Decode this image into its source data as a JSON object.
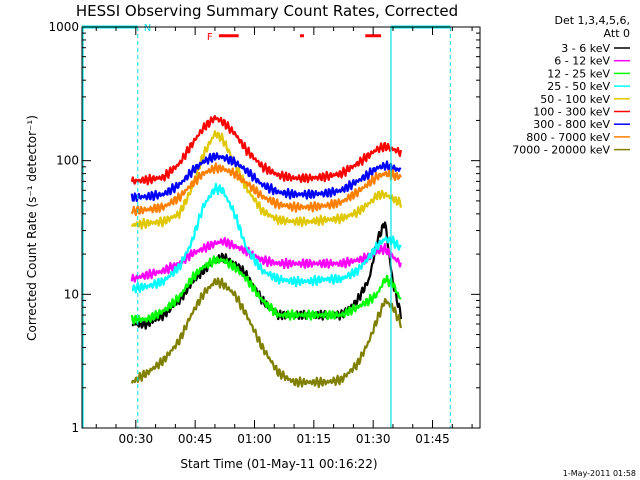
{
  "chart_data": {
    "type": "line",
    "title": "HESSI Observing Summary Count Rates, Corrected",
    "xlabel": "Start Time (01-May-11 00:16:22)",
    "ylabel": "Corrected Count Rate (s⁻¹ detector⁻¹)",
    "y_scale": "log",
    "ylim": [
      1,
      1000
    ],
    "xlim_minutes": [
      16.4,
      117
    ],
    "x_ticks": [
      {
        "label": "00:30",
        "value": 30
      },
      {
        "label": "00:45",
        "value": 45
      },
      {
        "label": "01:00",
        "value": 60
      },
      {
        "label": "01:15",
        "value": 75
      },
      {
        "label": "01:30",
        "value": 90
      },
      {
        "label": "01:45",
        "value": 105
      }
    ],
    "y_ticks": [
      {
        "label": "1",
        "value": 1
      },
      {
        "label": "10",
        "value": 10
      },
      {
        "label": "100",
        "value": 100
      },
      {
        "label": "1000",
        "value": 1000
      }
    ],
    "legend_header": [
      "Det 1,3,4,5,6,",
      "Att 0"
    ],
    "legend_position": "right",
    "x": [
      29,
      33,
      37,
      41,
      44,
      47,
      50,
      52,
      55,
      58,
      62,
      66,
      70,
      74,
      78,
      82,
      86,
      89,
      91,
      93,
      95,
      97
    ],
    "series": [
      {
        "name": "3 - 6 keV",
        "color": "#000000",
        "values": [
          6,
          6,
          7,
          9,
          12,
          15,
          18,
          19,
          17,
          14,
          9,
          7,
          7,
          7,
          7,
          7,
          9,
          13,
          25,
          35,
          12,
          7
        ]
      },
      {
        "name": "6 - 12 keV",
        "color": "#ff00ff",
        "values": [
          13,
          14,
          15,
          17,
          20,
          22,
          24,
          25,
          23,
          21,
          18,
          17,
          17,
          17,
          17,
          17,
          18,
          19,
          21,
          22,
          19,
          17
        ]
      },
      {
        "name": "12 - 25 keV",
        "color": "#00ff00",
        "values": [
          6.5,
          6.5,
          7.5,
          9.5,
          13,
          16,
          18,
          18,
          16,
          13,
          9,
          7,
          7,
          7,
          7,
          7,
          8,
          9,
          10,
          13,
          12,
          9
        ]
      },
      {
        "name": "25 - 50 keV",
        "color": "#00ffff",
        "values": [
          11,
          11.5,
          12.5,
          16,
          24,
          45,
          62,
          60,
          40,
          22,
          15,
          13,
          12.5,
          12.5,
          13,
          13,
          15,
          19,
          23,
          26,
          25,
          22
        ]
      },
      {
        "name": "50 - 100 keV",
        "color": "#e0c800",
        "values": [
          33,
          34,
          35,
          40,
          60,
          110,
          160,
          145,
          95,
          62,
          42,
          36,
          35,
          35,
          36,
          37,
          41,
          48,
          55,
          56,
          52,
          48
        ]
      },
      {
        "name": "100 - 300 keV",
        "color": "#ff0000",
        "values": [
          70,
          72,
          75,
          95,
          130,
          175,
          210,
          195,
          160,
          120,
          90,
          78,
          74,
          74,
          76,
          80,
          95,
          110,
          122,
          128,
          122,
          115
        ]
      },
      {
        "name": "300 - 800 keV",
        "color": "#0000ff",
        "values": [
          53,
          54,
          56,
          66,
          82,
          98,
          108,
          106,
          98,
          84,
          66,
          58,
          56,
          56,
          57,
          60,
          70,
          80,
          88,
          92,
          88,
          85
        ]
      },
      {
        "name": "800 - 7000 keV",
        "color": "#ff8000",
        "values": [
          42,
          43,
          45,
          53,
          66,
          80,
          88,
          87,
          80,
          68,
          54,
          47,
          45,
          45,
          46,
          49,
          58,
          68,
          76,
          80,
          78,
          75
        ]
      },
      {
        "name": "7000 - 20000 keV",
        "color": "#808000",
        "values": [
          2.2,
          2.6,
          3.2,
          4.5,
          7,
          10,
          12.5,
          12,
          10,
          7,
          4,
          2.6,
          2.2,
          2.2,
          2.2,
          2.3,
          3,
          4.5,
          6.5,
          9,
          8,
          6
        ]
      }
    ],
    "saa_markers": {
      "label": "N",
      "color": "#00e0e0",
      "value": 1000,
      "intervals_minutes": [
        [
          16.4,
          30.5
        ],
        [
          94.5,
          109.5
        ]
      ]
    },
    "flare_markers": {
      "label": "F",
      "color": "#ff0000",
      "value": 860,
      "intervals_minutes": [
        [
          51,
          56
        ],
        [
          71.5,
          72.5
        ],
        [
          88,
          92
        ]
      ]
    },
    "timestamp": "1-May-2011 01:58"
  }
}
